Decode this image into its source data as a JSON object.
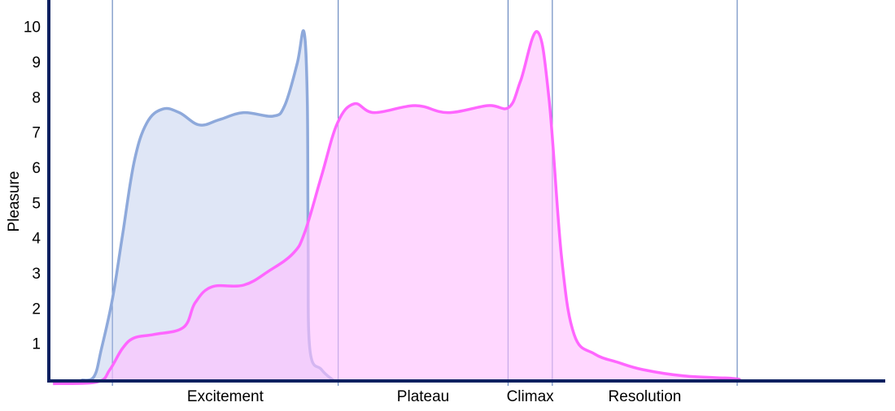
{
  "chart_data": {
    "type": "area",
    "y_label": "Pleasure",
    "xlim": [
      0,
      100
    ],
    "ylim": [
      0,
      10.8
    ],
    "yticks": [
      1,
      2,
      3,
      4,
      5,
      6,
      7,
      8,
      9,
      10
    ],
    "grid": false,
    "phases": [
      "Excitement",
      "Plateau",
      "Climax",
      "Resolution"
    ],
    "phase_bounds": [
      7.6,
      34.6,
      54.9,
      60.2,
      82.3
    ],
    "phase_line_color": "#4f75b5",
    "axis_color": "#0b2060",
    "series": [
      {
        "line_color": "#8ea9db",
        "color": "rgba(170,188,232,0.38)",
        "x": [
          3.9,
          5.4,
          6.3,
          7.6,
          8.8,
          10.2,
          11.7,
          13.6,
          15.6,
          18.0,
          20.4,
          23.3,
          26.8,
          28.2,
          29.7,
          30.5,
          30.9,
          31.0,
          31.2,
          32.6,
          34.0
        ],
        "values": [
          0,
          0.1,
          0.9,
          2.3,
          4.1,
          6.2,
          7.3,
          7.7,
          7.6,
          7.25,
          7.4,
          7.6,
          7.5,
          7.8,
          9.0,
          9.9,
          8.0,
          4.0,
          0.9,
          0.3,
          0
        ]
      },
      {
        "line_color": "#ff66ff",
        "color": "rgba(255,190,255,0.62)",
        "x": [
          0.5,
          5.8,
          7.3,
          8.8,
          10.2,
          12.6,
          16.1,
          17.5,
          19.5,
          23.3,
          26.3,
          29.2,
          30.6,
          32.6,
          34.5,
          36.5,
          38.9,
          43.8,
          47.7,
          52.5,
          55.0,
          56.4,
          58.4,
          59.8,
          61.3,
          62.8,
          65.2,
          68.1,
          71.0,
          75.9,
          81.7,
          82.7
        ],
        "values": [
          -0.1,
          -0.05,
          0.3,
          0.9,
          1.2,
          1.3,
          1.5,
          2.2,
          2.65,
          2.7,
          3.1,
          3.6,
          4.2,
          5.8,
          7.3,
          7.85,
          7.6,
          7.8,
          7.6,
          7.8,
          7.75,
          8.5,
          9.9,
          8.0,
          3.5,
          1.3,
          0.75,
          0.5,
          0.3,
          0.12,
          0.05,
          0
        ]
      }
    ]
  }
}
